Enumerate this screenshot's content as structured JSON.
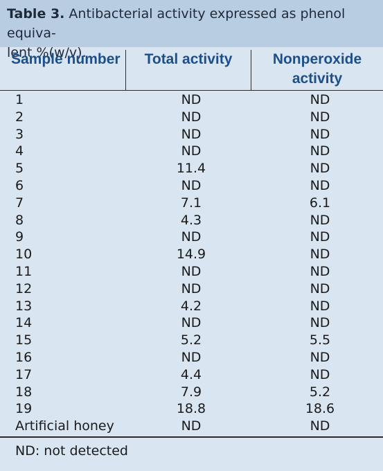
{
  "caption": {
    "label": "Table 3.",
    "text_line1": " Antibacterial activity expressed as phenol equiva-",
    "text_line2": "lent %(w/v)."
  },
  "headers": {
    "sample": "Sample number",
    "total": "Total activity",
    "nonperoxide_line1": "Nonperoxide",
    "nonperoxide_line2": "activity"
  },
  "rows": [
    {
      "sample": "1",
      "total": "ND",
      "nonperoxide": "ND"
    },
    {
      "sample": "2",
      "total": "ND",
      "nonperoxide": "ND"
    },
    {
      "sample": "3",
      "total": "ND",
      "nonperoxide": "ND"
    },
    {
      "sample": "4",
      "total": "ND",
      "nonperoxide": "ND"
    },
    {
      "sample": "5",
      "total": "11.4",
      "nonperoxide": "ND"
    },
    {
      "sample": "6",
      "total": "ND",
      "nonperoxide": "ND"
    },
    {
      "sample": "7",
      "total": "7.1",
      "nonperoxide": "6.1"
    },
    {
      "sample": "8",
      "total": "4.3",
      "nonperoxide": "ND"
    },
    {
      "sample": "9",
      "total": "ND",
      "nonperoxide": "ND"
    },
    {
      "sample": "10",
      "total": "14.9",
      "nonperoxide": "ND"
    },
    {
      "sample": "11",
      "total": "ND",
      "nonperoxide": "ND"
    },
    {
      "sample": "12",
      "total": "ND",
      "nonperoxide": "ND"
    },
    {
      "sample": "13",
      "total": "4.2",
      "nonperoxide": "ND"
    },
    {
      "sample": "14",
      "total": "ND",
      "nonperoxide": "ND"
    },
    {
      "sample": "15",
      "total": "5.2",
      "nonperoxide": "5.5"
    },
    {
      "sample": "16",
      "total": "ND",
      "nonperoxide": "ND"
    },
    {
      "sample": "17",
      "total": "4.4",
      "nonperoxide": "ND"
    },
    {
      "sample": "18",
      "total": "7.9",
      "nonperoxide": "5.2"
    },
    {
      "sample": "19",
      "total": "18.8",
      "nonperoxide": "18.6"
    },
    {
      "sample": "Artificial honey",
      "total": "ND",
      "nonperoxide": "ND"
    }
  ],
  "footnote": "ND: not detected",
  "colors": {
    "caption_bg": "#b8cde2",
    "table_bg": "#d9e5f1",
    "header_text": "#1d4f8a"
  }
}
